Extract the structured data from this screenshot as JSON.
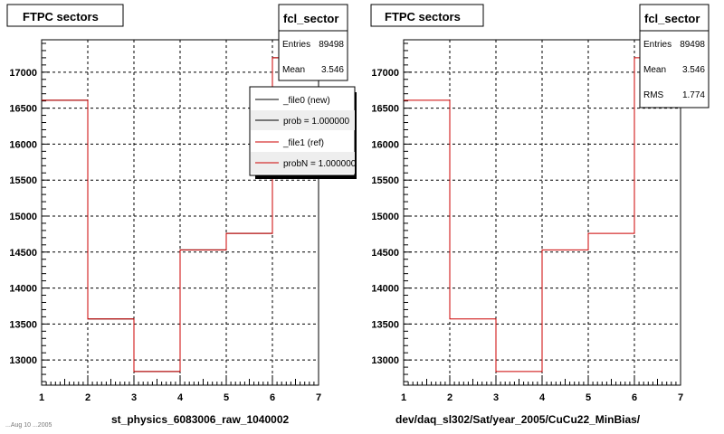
{
  "chart_data": [
    {
      "type": "line",
      "title": "FTPC sectors",
      "xlabel": "st_physics_6083006_raw_1040002",
      "ylabel": "",
      "xlim": [
        1,
        7
      ],
      "ylim": [
        12650,
        17450
      ],
      "x_ticks": [
        "1",
        "2",
        "3",
        "4",
        "5",
        "6",
        "7"
      ],
      "y_ticks": [
        "13000",
        "13500",
        "14000",
        "14500",
        "15000",
        "15500",
        "16000",
        "16500",
        "17000"
      ],
      "bin_edges": [
        1,
        2,
        3,
        4,
        5,
        6,
        7
      ],
      "series": [
        {
          "name": "_file0 (new)",
          "color": "#000000",
          "values": [
            16610,
            13570,
            12840,
            14530,
            14760,
            17200
          ]
        },
        {
          "name": "_file1 (ref)",
          "color": "#cc0000",
          "values": [
            16610,
            13570,
            12840,
            14530,
            14760,
            17200
          ]
        }
      ],
      "grid": true,
      "stats": {
        "title": "fcl_sector",
        "entries_label": "Entries",
        "entries": "89498",
        "mean_label": "Mean",
        "mean": "3.546"
      },
      "legend": {
        "entries": [
          {
            "label": "_file0 (new)",
            "color": "#000000"
          },
          {
            "label": "prob = 1.000000",
            "color": "#000000"
          },
          {
            "label": "_file1 (ref)",
            "color": "#cc0000"
          },
          {
            "label": "probN = 1.000000",
            "color": "#cc0000"
          }
        ]
      },
      "footer": "...Aug 10 ...2005"
    },
    {
      "type": "line",
      "title": "FTPC sectors",
      "xlabel": "dev/daq_sl302/Sat/year_2005/CuCu22_MinBias/",
      "ylabel": "",
      "xlim": [
        1,
        7
      ],
      "ylim": [
        12650,
        17450
      ],
      "x_ticks": [
        "1",
        "2",
        "3",
        "4",
        "5",
        "6",
        "7"
      ],
      "y_ticks": [
        "13000",
        "13500",
        "14000",
        "14500",
        "15000",
        "15500",
        "16000",
        "16500",
        "17000"
      ],
      "bin_edges": [
        1,
        2,
        3,
        4,
        5,
        6,
        7
      ],
      "series": [
        {
          "name": "",
          "color": "#cc0000",
          "values": [
            16610,
            13570,
            12840,
            14530,
            14760,
            17200
          ]
        }
      ],
      "grid": true,
      "stats": {
        "title": "fcl_sector",
        "entries_label": "Entries",
        "entries": "89498",
        "mean_label": "Mean",
        "mean": "3.546",
        "rms_label": "RMS",
        "rms": "1.774"
      }
    }
  ]
}
